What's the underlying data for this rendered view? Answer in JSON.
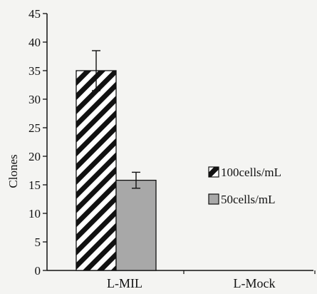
{
  "chart_data": {
    "type": "bar",
    "title": "",
    "xlabel": "",
    "ylabel": "Clones",
    "ylim": [
      0,
      45
    ],
    "yticks": [
      0,
      5,
      10,
      15,
      20,
      25,
      30,
      35,
      40,
      45
    ],
    "categories": [
      "L-MIL",
      "L-Mock"
    ],
    "series": [
      {
        "name": "100cells/mL",
        "values": [
          35,
          0
        ],
        "errors": [
          3.5,
          0
        ],
        "fill": "hatched",
        "color": "#111111"
      },
      {
        "name": "50cells/mL",
        "values": [
          15.8,
          0
        ],
        "errors": [
          1.4,
          0
        ],
        "fill": "solid",
        "color": "#a8a8a8"
      }
    ],
    "legend_position": "right",
    "grid": false
  }
}
